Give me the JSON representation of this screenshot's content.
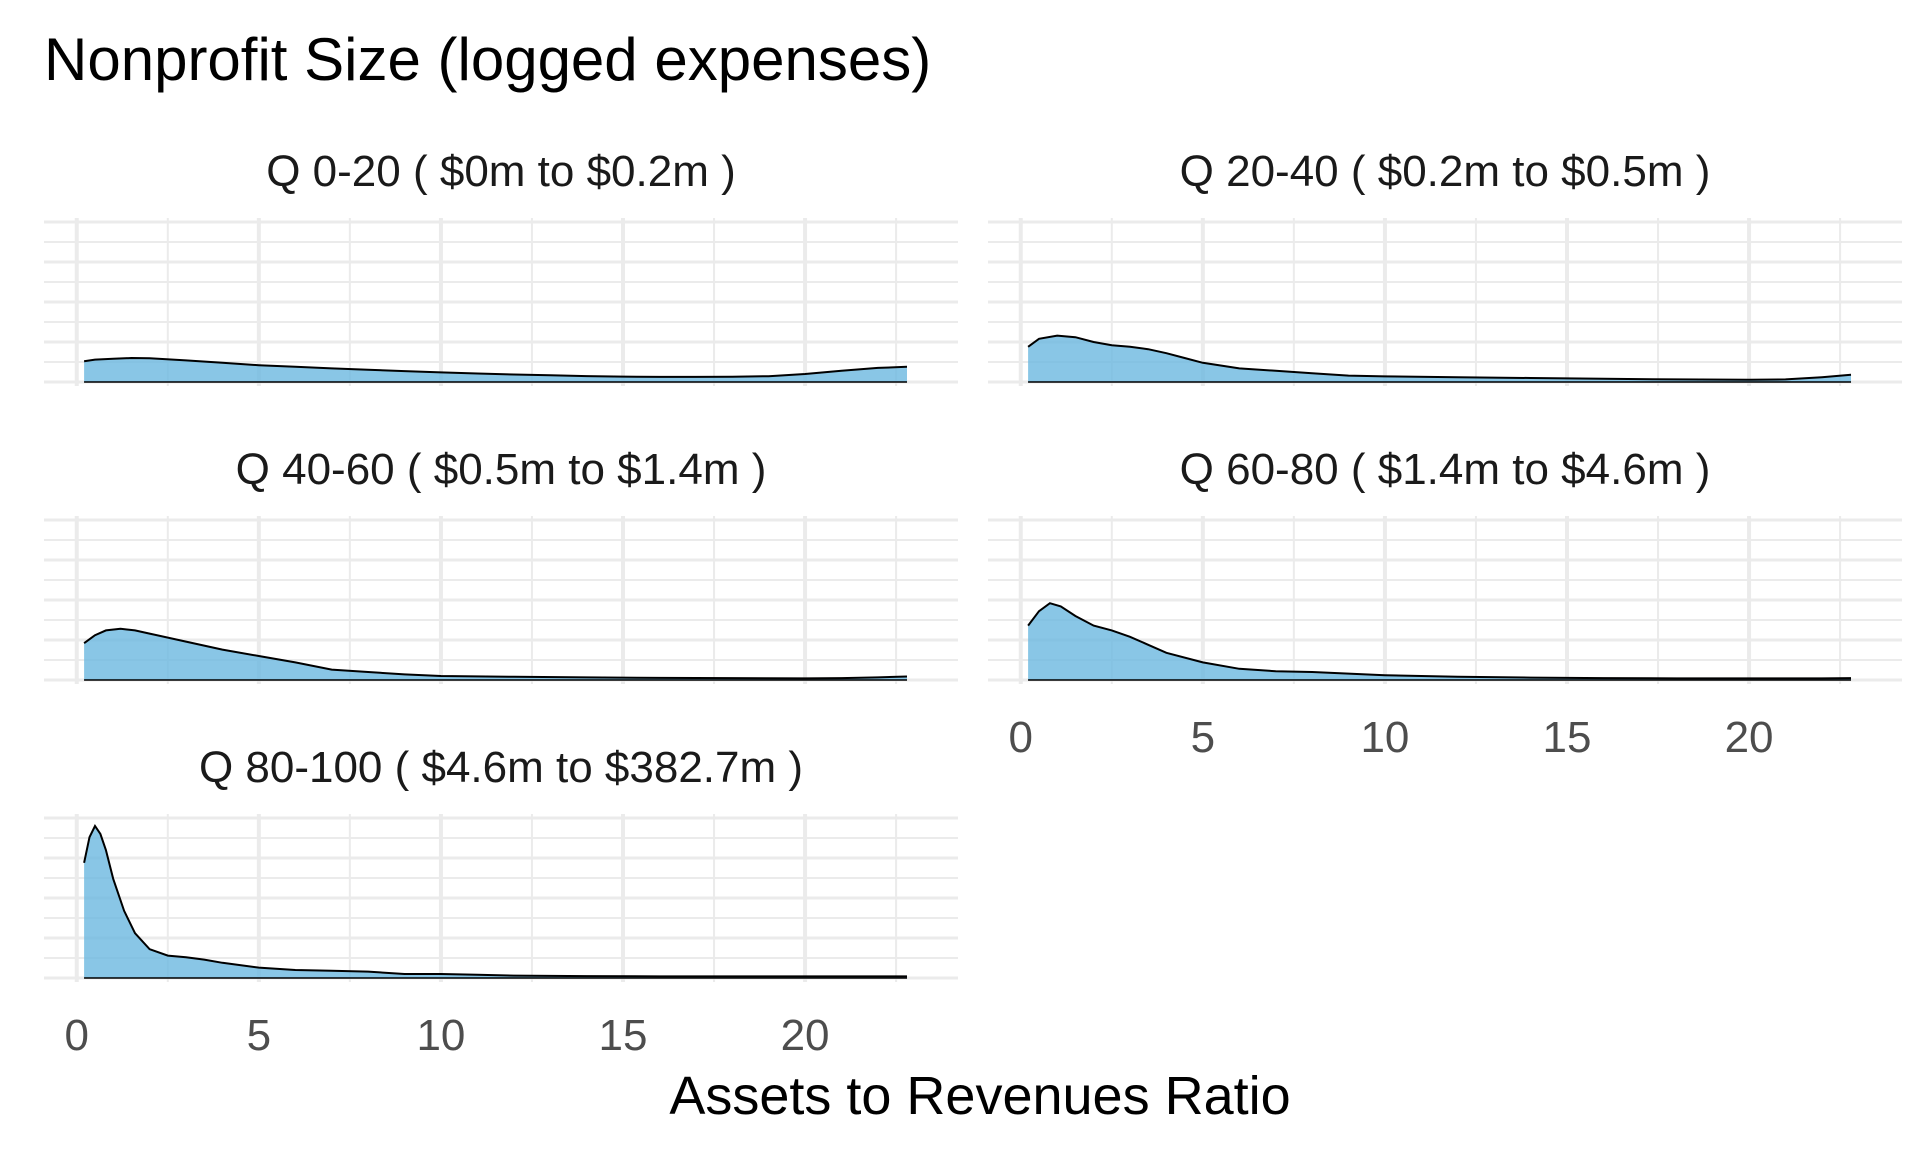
{
  "chart_data": {
    "type": "area",
    "subtype": "density",
    "title": "Nonprofit Size (logged expenses)",
    "xlabel": "Assets to Revenues Ratio",
    "ylabel": "",
    "xlim": [
      -0.9,
      24.2
    ],
    "x_ticks": [
      "0",
      "5",
      "10",
      "15",
      "20"
    ],
    "x_tick_values": [
      0,
      5,
      10,
      15,
      20
    ],
    "grid": true,
    "fill_color": "#6BB8E0",
    "line_color": "#000000",
    "grid_color": "#EBEBEB",
    "panels": [
      {
        "label": "Q 0-20   ( $0m to $0.2m )",
        "ymax": 1.0,
        "x": [
          0.2,
          0.5,
          1,
          1.5,
          2,
          3,
          4,
          5,
          6,
          7,
          8,
          9,
          10,
          11,
          12,
          13,
          14,
          15,
          16,
          17,
          18,
          19,
          20,
          21,
          22,
          22.8
        ],
        "y": [
          0.13,
          0.14,
          0.145,
          0.15,
          0.148,
          0.135,
          0.12,
          0.105,
          0.095,
          0.085,
          0.077,
          0.068,
          0.06,
          0.053,
          0.047,
          0.042,
          0.037,
          0.034,
          0.032,
          0.032,
          0.033,
          0.036,
          0.05,
          0.07,
          0.088,
          0.095
        ]
      },
      {
        "label": "Q 20-40   ( $0.2m to $0.5m )",
        "ymax": 1.0,
        "x": [
          0.2,
          0.5,
          1,
          1.5,
          2,
          2.5,
          3,
          3.5,
          4,
          4.5,
          5,
          6,
          7,
          8,
          9,
          10,
          12,
          14,
          16,
          18,
          20,
          21,
          22,
          22.8
        ],
        "y": [
          0.22,
          0.27,
          0.29,
          0.28,
          0.25,
          0.23,
          0.22,
          0.205,
          0.18,
          0.15,
          0.12,
          0.085,
          0.07,
          0.055,
          0.04,
          0.035,
          0.03,
          0.025,
          0.02,
          0.016,
          0.014,
          0.016,
          0.03,
          0.045
        ]
      },
      {
        "label": "Q 40-60   ( $0.5m to $1.4m )",
        "ymax": 1.0,
        "x": [
          0.2,
          0.5,
          0.8,
          1.2,
          1.6,
          2,
          3,
          4,
          5,
          6,
          7,
          8,
          9,
          10,
          12,
          14,
          16,
          18,
          20,
          21,
          22,
          22.8
        ],
        "y": [
          0.23,
          0.28,
          0.31,
          0.32,
          0.31,
          0.29,
          0.24,
          0.19,
          0.15,
          0.11,
          0.065,
          0.05,
          0.035,
          0.025,
          0.02,
          0.016,
          0.013,
          0.012,
          0.01,
          0.012,
          0.016,
          0.022
        ]
      },
      {
        "label": "Q 60-80   ( $1.4m to $4.6m )",
        "ymax": 1.0,
        "x": [
          0.2,
          0.5,
          0.8,
          1.1,
          1.5,
          2,
          2.5,
          3,
          3.5,
          4,
          5,
          6,
          7,
          8,
          9,
          10,
          12,
          14,
          16,
          18,
          20,
          22,
          22.8
        ],
        "y": [
          0.34,
          0.43,
          0.48,
          0.46,
          0.4,
          0.34,
          0.31,
          0.27,
          0.22,
          0.17,
          0.11,
          0.07,
          0.055,
          0.05,
          0.04,
          0.03,
          0.02,
          0.015,
          0.012,
          0.01,
          0.01,
          0.01,
          0.012
        ]
      },
      {
        "label": "Q 80-100   ( $4.6m to $382.7m )",
        "ymax": 1.0,
        "x": [
          0.2,
          0.35,
          0.5,
          0.65,
          0.8,
          1,
          1.3,
          1.6,
          2,
          2.5,
          3,
          3.5,
          4,
          5,
          6,
          7,
          8,
          9,
          10,
          11,
          12,
          14,
          16,
          18,
          20,
          22,
          22.8
        ],
        "y": [
          0.72,
          0.88,
          0.95,
          0.9,
          0.8,
          0.62,
          0.42,
          0.28,
          0.18,
          0.14,
          0.13,
          0.115,
          0.095,
          0.065,
          0.05,
          0.045,
          0.04,
          0.025,
          0.025,
          0.02,
          0.015,
          0.012,
          0.01,
          0.01,
          0.01,
          0.01,
          0.01
        ]
      }
    ]
  }
}
